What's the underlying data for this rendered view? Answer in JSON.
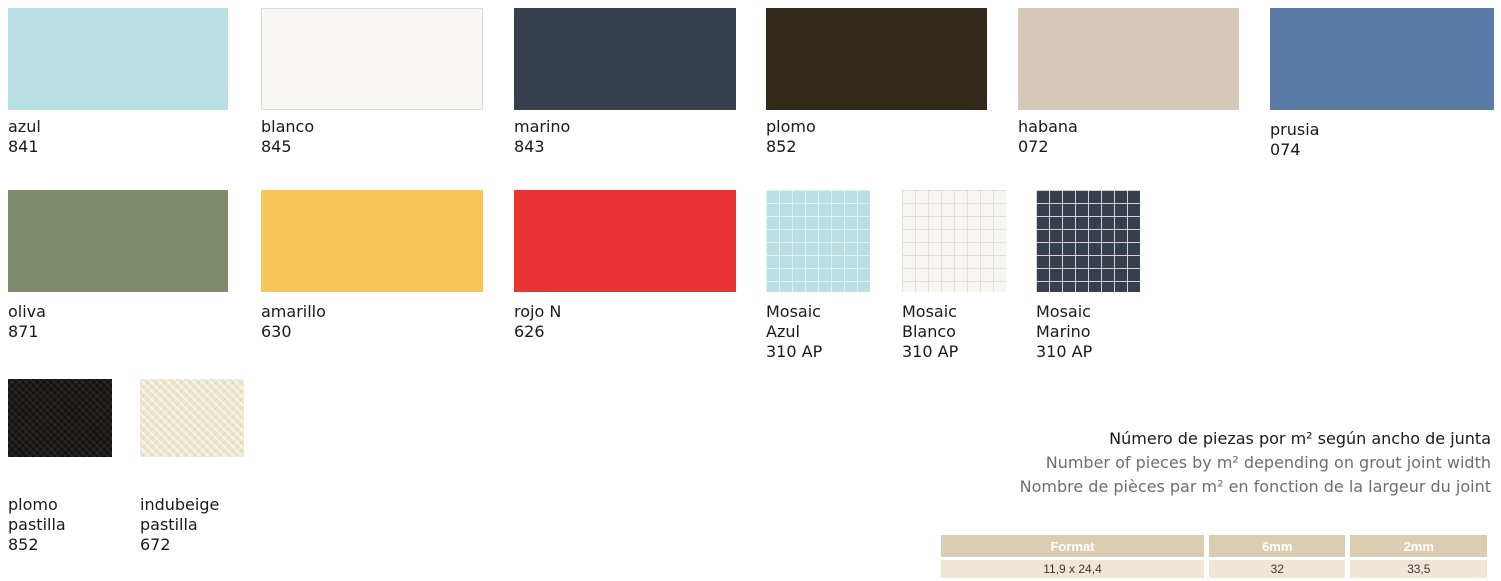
{
  "colors": {
    "azul": "#b9dfe2",
    "blanco": "#f7f6f2",
    "marino": "#363f4b",
    "plomo": "#33291b",
    "habana": "#d5c9b9",
    "prusia": "#5a7ba8",
    "oliva": "#7f8a6d",
    "amarillo": "#f8c55a",
    "rojo": "#e93335",
    "table_header": "#dccdb2",
    "table_cell": "#efe6d6"
  },
  "swatches_row1": [
    {
      "name": "azul",
      "code": "841"
    },
    {
      "name": "blanco",
      "code": "845"
    },
    {
      "name": "marino",
      "code": "843"
    },
    {
      "name": "plomo",
      "code": "852"
    },
    {
      "name": "habana",
      "code": "072"
    },
    {
      "name": "prusia",
      "code": "074"
    }
  ],
  "swatches_row2": [
    {
      "name": "oliva",
      "code": "871"
    },
    {
      "name": "amarillo",
      "code": "630"
    },
    {
      "name": "rojo N",
      "code": "626"
    }
  ],
  "mosaics": [
    {
      "line1": "Mosaic",
      "line2": "Azul",
      "code": "310 AP"
    },
    {
      "line1": "Mosaic",
      "line2": "Blanco",
      "code": "310 AP"
    },
    {
      "line1": "Mosaic",
      "line2": "Marino",
      "code": "310 AP"
    }
  ],
  "pastillas": [
    {
      "line1": "plomo",
      "line2": "pastilla",
      "code": "852"
    },
    {
      "line1": "indubeige",
      "line2": "pastilla",
      "code": "672"
    }
  ],
  "info": {
    "es": "Número de piezas por m² según ancho de junta",
    "en": "Number of pieces by m² depending on grout joint width",
    "fr": "Nombre de pièces par m² en fonction de la largeur du joint"
  },
  "table": {
    "headers": [
      "Format",
      "6mm",
      "2mm"
    ],
    "rows": [
      [
        "11,9 x 24,4",
        "32",
        "33,5"
      ]
    ]
  }
}
